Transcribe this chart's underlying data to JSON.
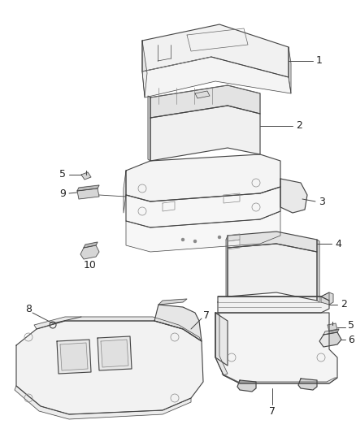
{
  "background_color": "#ffffff",
  "fig_width": 4.38,
  "fig_height": 5.33,
  "dpi": 100,
  "line_color": "#444444",
  "fill_light": "#f0f0f0",
  "fill_mid": "#e0e0e0",
  "fill_dark": "#cccccc",
  "label_fontsize": 8,
  "label_color": "#222222"
}
